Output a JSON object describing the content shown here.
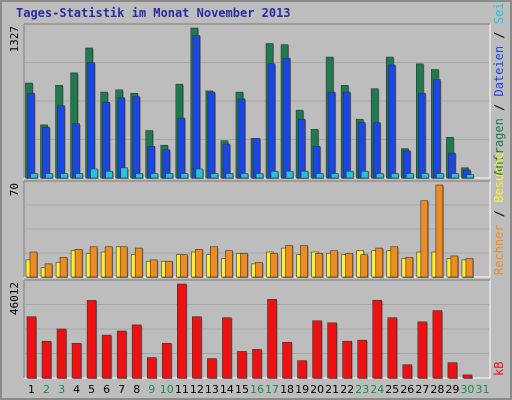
{
  "title": "Tages-Statistik im Monat November 2013",
  "colors": {
    "anfragen": "#1f7a4d",
    "dateien": "#1a46e6",
    "seiten": "#22c4e0",
    "besuche": "#ffee33",
    "rechner": "#ee8c22",
    "kb": "#ee1111",
    "weekday_label": "#000000",
    "weekend_label": "#1a8a4a"
  },
  "chart_data": [
    {
      "type": "bar",
      "name": "panel-requests",
      "ymax_label": "1327",
      "ylim": [
        0,
        1327
      ],
      "legend": [
        "Anfragen",
        "/",
        "Dateien",
        "/",
        "Seiten"
      ],
      "categories": [
        "1",
        "2",
        "3",
        "4",
        "5",
        "6",
        "7",
        "8",
        "9",
        "10",
        "11",
        "12",
        "13",
        "14",
        "15",
        "16",
        "17",
        "18",
        "19",
        "20",
        "21",
        "22",
        "23",
        "24",
        "25",
        "26",
        "27",
        "28",
        "29",
        "30",
        "31"
      ],
      "series": [
        {
          "name": "Anfragen",
          "values": [
            840,
            470,
            820,
            930,
            1150,
            760,
            780,
            750,
            420,
            290,
            830,
            1327,
            770,
            330,
            760,
            350,
            1190,
            1180,
            600,
            430,
            1070,
            820,
            520,
            790,
            1070,
            260,
            1010,
            960,
            360,
            90,
            0
          ]
        },
        {
          "name": "Dateien",
          "values": [
            750,
            450,
            640,
            480,
            1020,
            670,
            710,
            720,
            280,
            250,
            530,
            1260,
            760,
            300,
            700,
            350,
            1010,
            1060,
            520,
            280,
            760,
            760,
            490,
            490,
            1000,
            240,
            750,
            870,
            220,
            70,
            0
          ]
        },
        {
          "name": "Seiten",
          "values": [
            40,
            40,
            40,
            40,
            80,
            60,
            90,
            40,
            40,
            40,
            40,
            80,
            40,
            40,
            40,
            40,
            60,
            60,
            60,
            40,
            40,
            60,
            60,
            40,
            40,
            40,
            40,
            40,
            40,
            30,
            0
          ]
        }
      ]
    },
    {
      "type": "bar",
      "name": "panel-visits",
      "ymax_label": "70",
      "ylim": [
        0,
        70
      ],
      "legend": [
        "Rechner",
        "/",
        "Besuche"
      ],
      "categories": [
        "1",
        "2",
        "3",
        "4",
        "5",
        "6",
        "7",
        "8",
        "9",
        "10",
        "11",
        "12",
        "13",
        "14",
        "15",
        "16",
        "17",
        "18",
        "19",
        "20",
        "21",
        "22",
        "23",
        "24",
        "25",
        "26",
        "27",
        "28",
        "29",
        "30",
        "31"
      ],
      "series": [
        {
          "name": "Besuche",
          "values": [
            13,
            7,
            11,
            20,
            18,
            19,
            23,
            17,
            12,
            12,
            17,
            19,
            17,
            14,
            18,
            10,
            19,
            22,
            17,
            19,
            18,
            17,
            20,
            20,
            20,
            14,
            19,
            19,
            14,
            13,
            0
          ]
        },
        {
          "name": "Rechner",
          "values": [
            19,
            10,
            15,
            21,
            23,
            23,
            23,
            22,
            13,
            12,
            17,
            21,
            23,
            20,
            18,
            11,
            18,
            24,
            24,
            18,
            20,
            18,
            17,
            22,
            23,
            15,
            58,
            70,
            16,
            14,
            0
          ]
        }
      ]
    },
    {
      "type": "bar",
      "name": "panel-kb",
      "ymax_label": "46012",
      "ylim": [
        0,
        46012
      ],
      "legend": [
        "kB"
      ],
      "categories": [
        "1",
        "2",
        "3",
        "4",
        "5",
        "6",
        "7",
        "8",
        "9",
        "10",
        "11",
        "12",
        "13",
        "14",
        "15",
        "16",
        "17",
        "18",
        "19",
        "20",
        "21",
        "22",
        "23",
        "24",
        "25",
        "26",
        "27",
        "28",
        "29",
        "30",
        "31"
      ],
      "series": [
        {
          "name": "kB",
          "values": [
            30000,
            18000,
            24000,
            17000,
            38000,
            21000,
            23000,
            26000,
            10000,
            17000,
            46012,
            30000,
            9500,
            29500,
            13000,
            14000,
            38500,
            17500,
            8500,
            28000,
            27000,
            18000,
            18500,
            38000,
            29500,
            6500,
            27500,
            33000,
            7500,
            1500,
            0
          ]
        }
      ]
    }
  ]
}
